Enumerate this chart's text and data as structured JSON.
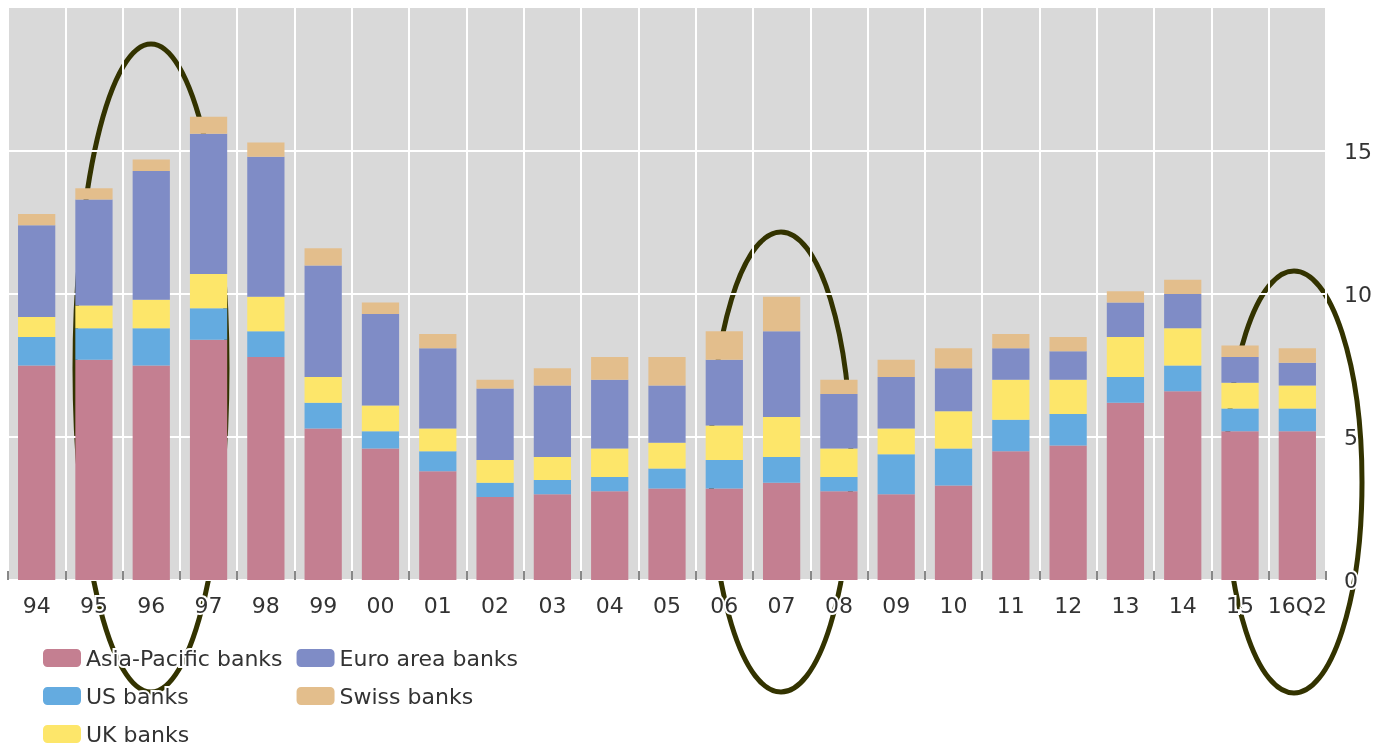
{
  "chart_data": {
    "type": "bar",
    "stacked": true,
    "categories": [
      "94",
      "95",
      "96",
      "97",
      "98",
      "99",
      "00",
      "01",
      "02",
      "03",
      "04",
      "05",
      "06",
      "07",
      "08",
      "09",
      "10",
      "11",
      "12",
      "13",
      "14",
      "15",
      "16Q2"
    ],
    "series": [
      {
        "name": "Asia-Pacific banks",
        "color": "#c47f91",
        "values": [
          7.5,
          7.7,
          7.5,
          8.4,
          7.8,
          5.3,
          4.6,
          3.8,
          2.9,
          3.0,
          3.1,
          3.2,
          3.2,
          3.4,
          3.1,
          3.0,
          3.3,
          4.5,
          4.7,
          6.2,
          6.6,
          5.2,
          5.2
        ]
      },
      {
        "name": "US banks",
        "color": "#64abe0",
        "values": [
          1.0,
          1.1,
          1.3,
          1.1,
          0.9,
          0.9,
          0.6,
          0.7,
          0.5,
          0.5,
          0.5,
          0.7,
          1.0,
          0.9,
          0.5,
          1.4,
          1.3,
          1.1,
          1.1,
          0.9,
          0.9,
          0.8,
          0.8
        ]
      },
      {
        "name": "UK banks",
        "color": "#fde66a",
        "values": [
          0.7,
          0.8,
          1.0,
          1.2,
          1.2,
          0.9,
          0.9,
          0.8,
          0.8,
          0.8,
          1.0,
          0.9,
          1.2,
          1.4,
          1.0,
          0.9,
          1.3,
          1.4,
          1.2,
          1.4,
          1.3,
          0.9,
          0.8
        ]
      },
      {
        "name": "Euro area banks",
        "color": "#7f8cc6",
        "values": [
          3.2,
          3.7,
          4.5,
          4.9,
          4.9,
          3.9,
          3.2,
          2.8,
          2.5,
          2.5,
          2.4,
          2.0,
          2.3,
          3.0,
          1.9,
          1.8,
          1.5,
          1.1,
          1.0,
          1.2,
          1.2,
          0.9,
          0.8
        ]
      },
      {
        "name": "Swiss banks",
        "color": "#e3be8c",
        "values": [
          0.4,
          0.4,
          0.4,
          0.6,
          0.5,
          0.6,
          0.4,
          0.5,
          0.3,
          0.6,
          0.8,
          1.0,
          1.0,
          1.2,
          0.5,
          0.6,
          0.7,
          0.5,
          0.5,
          0.4,
          0.5,
          0.4,
          0.5
        ]
      }
    ],
    "ylim": [
      0,
      20
    ],
    "yticks": [
      0,
      5,
      10,
      15
    ],
    "grid": true,
    "legend": "bottom left"
  }
}
